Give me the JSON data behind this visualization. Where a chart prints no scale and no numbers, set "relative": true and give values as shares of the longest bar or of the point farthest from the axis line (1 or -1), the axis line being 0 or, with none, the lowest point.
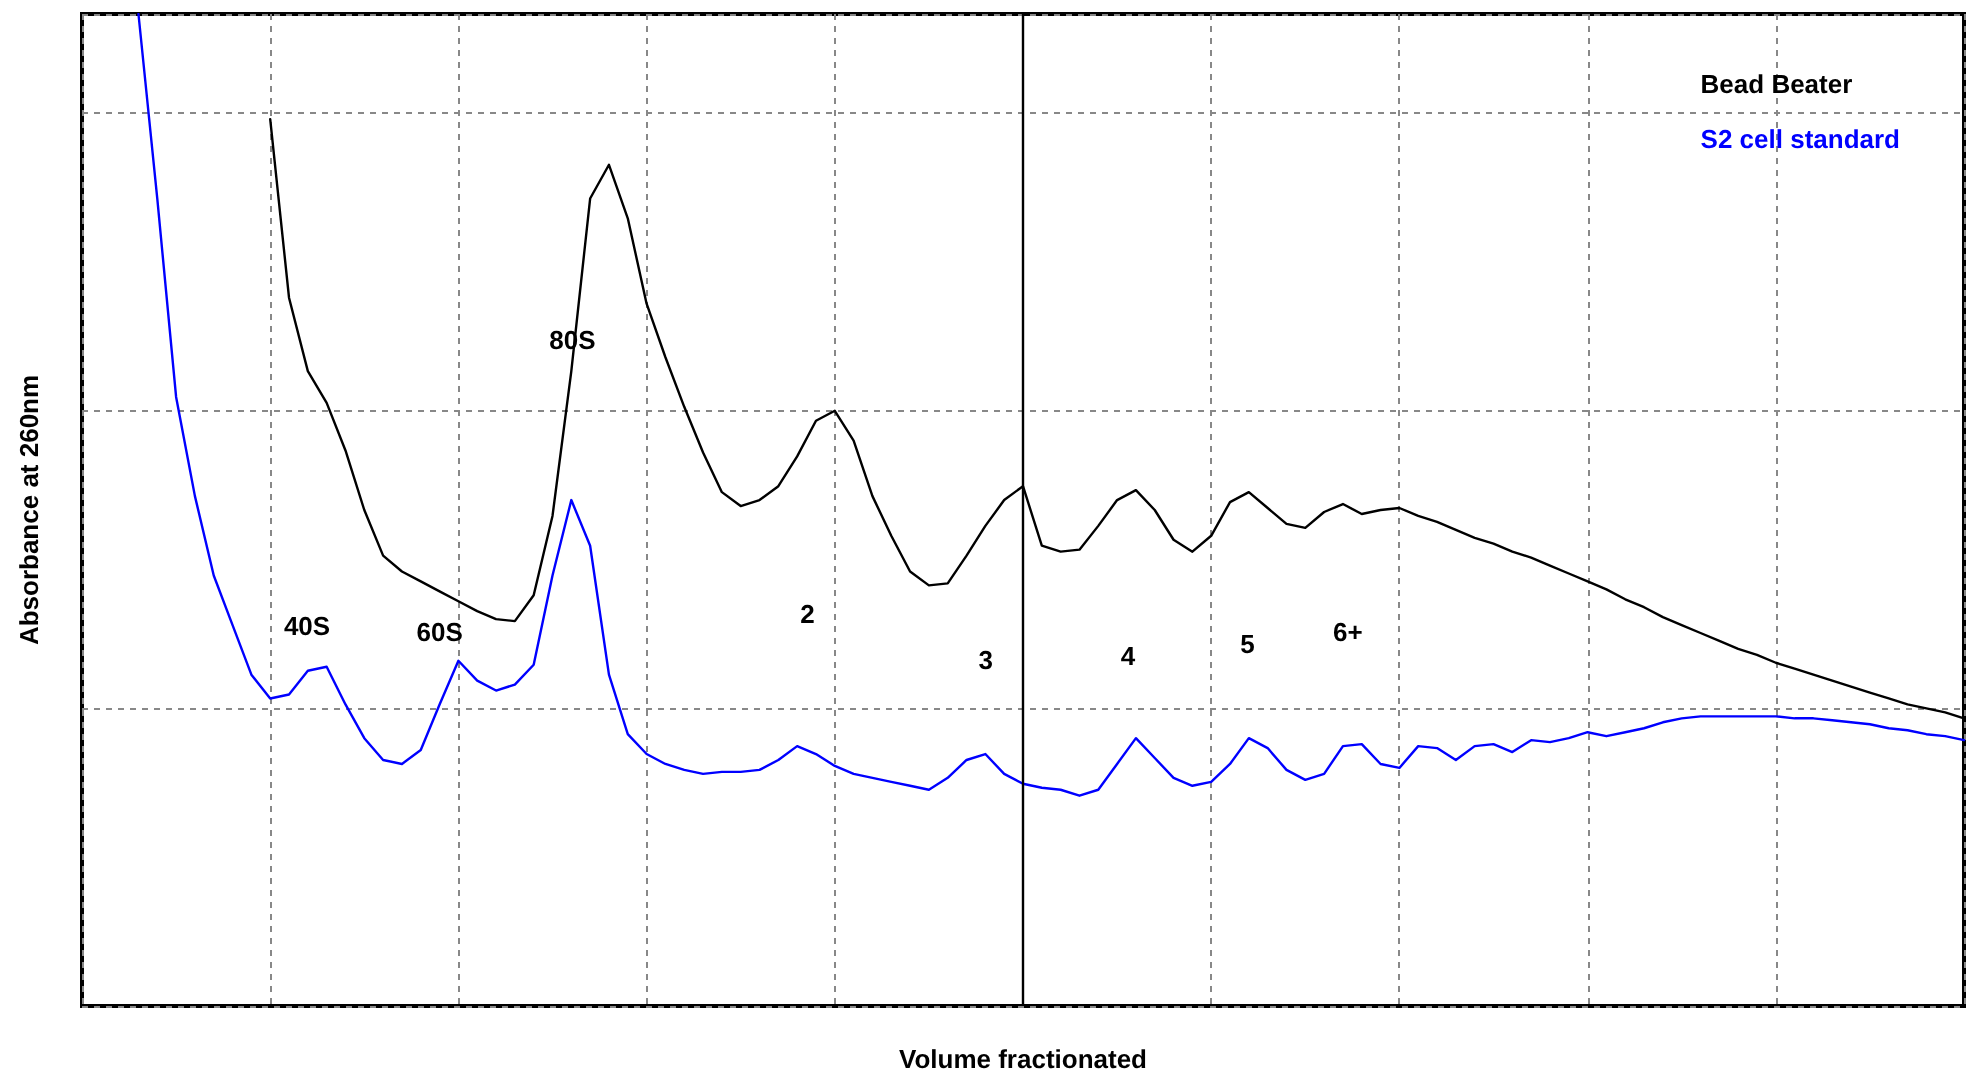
{
  "chart_data": {
    "type": "line",
    "relative": true,
    "xlabel": "Volume fractionated",
    "ylabel": "Absorbance at 260nm",
    "legend": "top right",
    "grid": true,
    "marker": "none",
    "line_style": "solid",
    "categories": [
      null,
      null,
      null,
      null,
      null,
      null,
      null,
      null,
      null,
      null,
      null,
      null,
      null,
      null,
      null,
      null,
      null,
      null,
      null,
      null,
      null,
      null,
      null,
      null,
      null,
      null,
      null,
      null,
      null,
      null,
      null,
      null,
      null,
      null,
      null,
      null,
      null,
      null,
      null,
      null,
      null,
      null,
      null,
      null,
      null,
      null,
      null,
      null,
      null,
      null,
      null,
      null,
      null,
      null,
      null,
      null,
      null,
      null,
      null,
      null,
      null,
      null,
      null,
      null,
      null,
      null,
      null,
      null,
      null,
      null,
      null,
      null,
      null,
      null,
      null,
      null,
      null,
      null,
      null,
      null,
      null,
      null,
      null,
      null,
      null,
      null,
      null,
      null,
      null,
      null,
      null,
      null,
      null,
      null,
      null,
      null,
      null,
      null,
      null,
      null,
      null
    ],
    "series": [
      {
        "name": "Bead Beater",
        "color": "#000000",
        "values": [
          null,
          null,
          null,
          null,
          null,
          null,
          null,
          null,
          null,
          null,
          0.894,
          0.714,
          0.64,
          0.608,
          0.56,
          0.5,
          0.454,
          0.438,
          0.428,
          0.418,
          0.408,
          0.398,
          0.39,
          0.388,
          0.414,
          0.494,
          0.64,
          0.814,
          0.848,
          0.794,
          0.708,
          0.654,
          0.604,
          0.558,
          0.518,
          0.504,
          0.51,
          0.524,
          0.554,
          0.59,
          0.6,
          0.57,
          0.514,
          0.474,
          0.438,
          0.424,
          0.426,
          0.454,
          0.484,
          0.51,
          0.524,
          0.464,
          0.458,
          0.46,
          0.484,
          0.51,
          0.52,
          0.5,
          0.47,
          0.458,
          0.474,
          0.508,
          0.518,
          0.502,
          0.486,
          0.482,
          0.498,
          0.506,
          0.496,
          0.5,
          0.502,
          0.494,
          0.488,
          0.48,
          0.472,
          0.466,
          0.458,
          0.452,
          0.444,
          0.436,
          0.428,
          0.42,
          0.41,
          0.402,
          0.392,
          0.384,
          0.376,
          0.368,
          0.36,
          0.354,
          0.346,
          0.34,
          0.334,
          0.328,
          0.322,
          0.316,
          0.31,
          0.304,
          0.3,
          0.296,
          0.29
        ]
      },
      {
        "name": "S2 cell standard",
        "color": "#0000ff",
        "values": [
          null,
          null,
          null,
          1.0,
          0.814,
          0.614,
          0.514,
          0.434,
          0.384,
          0.334,
          0.31,
          0.314,
          0.338,
          0.342,
          0.304,
          0.27,
          0.248,
          0.244,
          0.258,
          0.304,
          0.348,
          0.328,
          0.318,
          0.324,
          0.344,
          0.434,
          0.51,
          0.464,
          0.334,
          0.274,
          0.254,
          0.244,
          0.238,
          0.234,
          0.236,
          0.236,
          0.238,
          0.248,
          0.262,
          0.254,
          0.242,
          0.234,
          0.23,
          0.226,
          0.222,
          0.218,
          0.23,
          0.248,
          0.254,
          0.234,
          0.224,
          0.22,
          0.218,
          0.212,
          0.218,
          0.244,
          0.27,
          0.25,
          0.23,
          0.222,
          0.226,
          0.244,
          0.27,
          0.26,
          0.238,
          0.228,
          0.234,
          0.262,
          0.264,
          0.244,
          0.24,
          0.262,
          0.26,
          0.248,
          0.262,
          0.264,
          0.256,
          0.268,
          0.266,
          0.27,
          0.276,
          0.272,
          0.276,
          0.28,
          0.286,
          0.29,
          0.292,
          0.292,
          0.292,
          0.292,
          0.292,
          0.29,
          0.29,
          0.288,
          0.286,
          0.284,
          0.28,
          0.278,
          0.274,
          0.272,
          0.268
        ]
      }
    ],
    "annotations": [
      "40S",
      "60S",
      "80S",
      "2",
      "3",
      "4",
      "5",
      "6+"
    ]
  }
}
